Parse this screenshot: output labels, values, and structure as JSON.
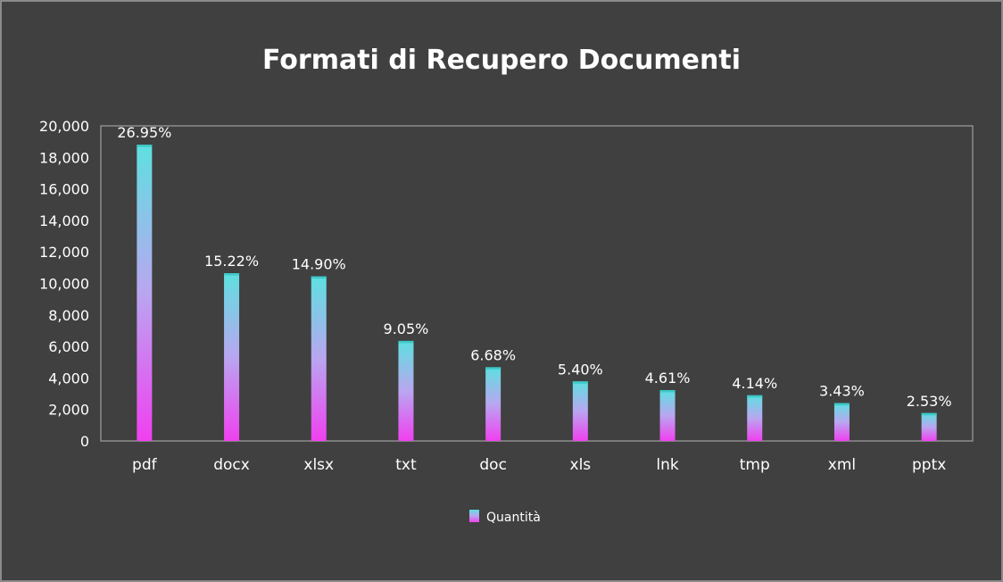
{
  "chart_data": {
    "type": "bar",
    "title": "Formati di Recupero Documenti",
    "categories": [
      "pdf",
      "docx",
      "xlsx",
      "txt",
      "doc",
      "xls",
      "lnk",
      "tmp",
      "xml",
      "pptx"
    ],
    "series": [
      {
        "name": "Quantità",
        "values": [
          18800,
          10650,
          10450,
          6350,
          4680,
          3780,
          3230,
          2900,
          2400,
          1770
        ],
        "data_labels": [
          "26.95%",
          "15.22%",
          "14.90%",
          "9.05%",
          "6.68%",
          "5.40%",
          "4.61%",
          "4.14%",
          "3.43%",
          "2.53%"
        ]
      }
    ],
    "ylim": [
      0,
      20000
    ],
    "yticks": [
      "0",
      "2,000",
      "4,000",
      "6,000",
      "8,000",
      "10,000",
      "12,000",
      "14,000",
      "16,000",
      "18,000",
      "20,000"
    ],
    "xlabel": "",
    "ylabel": "",
    "grid": false,
    "legend": "bottom",
    "colors": {
      "background": "#404040",
      "bar_top": "#5ee0e0",
      "bar_mid": "#b9a6f0",
      "bar_bottom": "#f040f0",
      "axis": "#8c8c8c",
      "text": "#ffffff"
    }
  }
}
